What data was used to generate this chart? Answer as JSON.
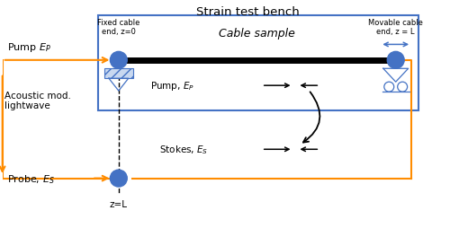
{
  "title": "Strain test bench",
  "orange": "#FF8C00",
  "blue": "#4472C4",
  "black": "#000000",
  "white": "#FFFFFF",
  "figsize": [
    5.0,
    2.55
  ],
  "dpi": 100,
  "pump_label": "Pump $E_P$",
  "probe_label": "Probe, $E_S$",
  "pump_inner_label": "Pump, $E_P$",
  "stokes_label": "Stokes, $E_S$",
  "acoustic_label": "Acoustic mod.\nlightwave",
  "cable_label": "Cable sample",
  "fixed_label": "Fixed cable\nend, z=0",
  "movable_label": "Movable cable\nend, z = L",
  "z_label": "z=L",
  "xlim": [
    0,
    10
  ],
  "ylim": [
    0,
    5.1
  ]
}
